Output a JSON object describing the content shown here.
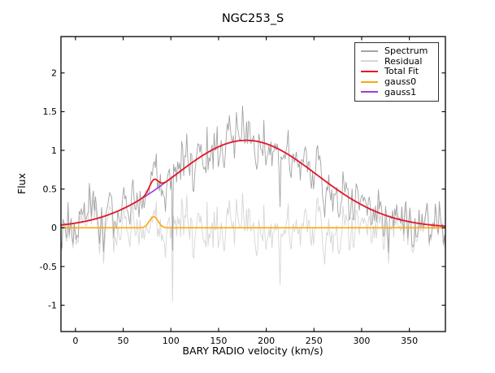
{
  "title": "NGC253_S",
  "axes": {
    "xlabel": "BARY RADIO velocity (km/s)",
    "ylabel": "Flux"
  },
  "chart_data": {
    "type": "line",
    "title": "NGC253_S",
    "xlabel": "BARY RADIO velocity (km/s)",
    "ylabel": "Flux",
    "xlim": [
      -15.2,
      387.8
    ],
    "ylim": [
      -1.34,
      2.47
    ],
    "x_ticks": [
      0,
      50,
      100,
      150,
      200,
      250,
      300,
      350
    ],
    "y_ticks": [
      2,
      1.5,
      1,
      0.5,
      0,
      -0.5,
      -1
    ],
    "y_tick_labels": [
      "2",
      "1.5",
      "1",
      "0.5",
      "0",
      "-0.5",
      "-1"
    ],
    "grid": false,
    "legend_position": "upper right",
    "background": "#ffffff",
    "axis_color": "#000000",
    "series": [
      {
        "name": "Spectrum",
        "color": "#a3a3a3",
        "role": "data",
        "linewidth": 0.9,
        "description": "observed spectrum; equals total fit plus residual noise, peaks near flux 1.55 around v=150-180 km/s"
      },
      {
        "name": "Residual",
        "color": "#d6d6d6",
        "role": "residual",
        "linewidth": 0.9,
        "description": "spectrum minus total fit, noise centered on 0 with excursions to about -0.95"
      },
      {
        "name": "Total Fit",
        "color": "#e51a2b",
        "role": "model-sum",
        "linewidth": 1.8,
        "peak_flux": 1.13,
        "peak_velocity": 179,
        "description": "sum of gauss0 and gauss1; broad peak flux 1.13 at 179 km/s with small bump (0.62) at 83 km/s"
      },
      {
        "name": "gauss0",
        "color": "#ffa60a",
        "role": "component",
        "linewidth": 1.6,
        "gaussian": {
          "amplitude": 0.145,
          "center": 82,
          "sigma": 4.5
        }
      },
      {
        "name": "gauss1",
        "color": "#9c3ddb",
        "role": "component",
        "linewidth": 1.6,
        "gaussian": {
          "amplitude": 1.13,
          "center": 179,
          "sigma": 74
        }
      }
    ],
    "noise": {
      "std": 0.19,
      "n_points": 380,
      "seed": 21,
      "outliers": [
        {
          "velocity": 102,
          "residual": -0.95
        },
        {
          "velocity": 215,
          "residual": -0.74
        }
      ]
    }
  }
}
